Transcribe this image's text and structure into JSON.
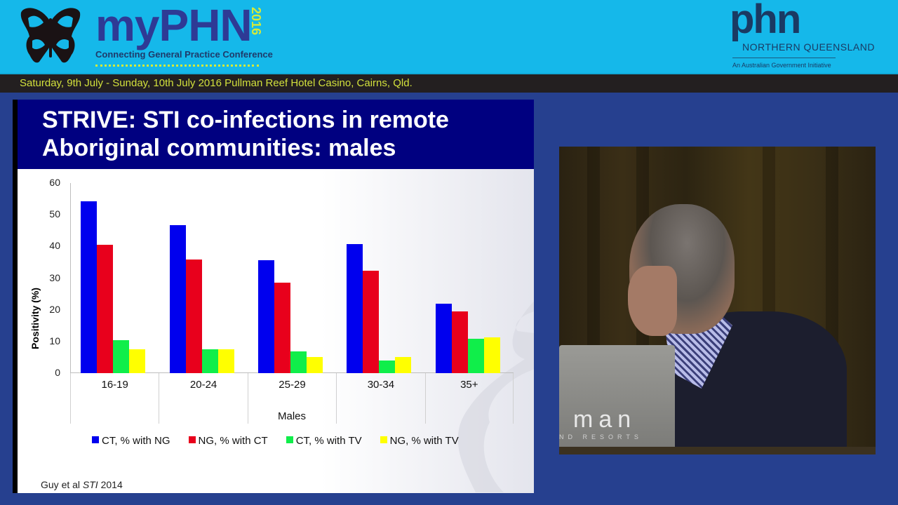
{
  "header": {
    "brand_my": "my",
    "brand_phn": "PHN",
    "brand_year": "2016",
    "brand_subtitle": "Connecting General Practice Conference",
    "partner_logo_word": "phn",
    "partner_logo_region": "NORTHERN QUEENSLAND",
    "partner_logo_tagline": "An Australian Government Initiative",
    "date_location": "Saturday, 9th July - Sunday, 10th July 2016  Pullman Reef Hotel Casino, Cairns, Qld."
  },
  "slide": {
    "title_line1": "STRIVE: STI co-infections in remote",
    "title_line2": "Aboriginal communities: males",
    "citation_prefix": "Guy et al ",
    "citation_journal": "STI",
    "citation_year": " 2014"
  },
  "video": {
    "podium_brand": "man",
    "podium_sub": "ND RESORTS"
  },
  "colors": {
    "banner": "#15b8ea",
    "page_bg": "#26408f",
    "slide_title_bg": "#000080",
    "series_ct_ng": "#0000ee",
    "series_ng_ct": "#e8001c",
    "series_ct_tv": "#10ee4a",
    "series_ng_tv": "#ffff00"
  },
  "chart_data": {
    "type": "bar",
    "title": "STRIVE: STI co-infections in remote Aboriginal communities: males",
    "xlabel": "Males",
    "ylabel": "Positivity (%)",
    "ylim": [
      0,
      60
    ],
    "yticks": [
      0,
      10,
      20,
      30,
      40,
      50,
      60
    ],
    "grid": false,
    "legend_position": "bottom",
    "categories": [
      "16-19",
      "20-24",
      "25-29",
      "30-34",
      "35+"
    ],
    "series": [
      {
        "name": "CT, % with NG",
        "color": "#0000ee",
        "values": [
          54.2,
          46.7,
          35.6,
          40.7,
          21.9
        ]
      },
      {
        "name": "NG, % with CT",
        "color": "#e8001c",
        "values": [
          40.5,
          35.8,
          28.5,
          32.3,
          19.5
        ]
      },
      {
        "name": "CT, % with TV",
        "color": "#10ee4a",
        "values": [
          10.4,
          7.5,
          6.9,
          4.0,
          10.8
        ]
      },
      {
        "name": "NG, % with TV",
        "color": "#ffff00",
        "values": [
          7.5,
          7.5,
          5.1,
          5.1,
          11.3
        ]
      }
    ]
  }
}
